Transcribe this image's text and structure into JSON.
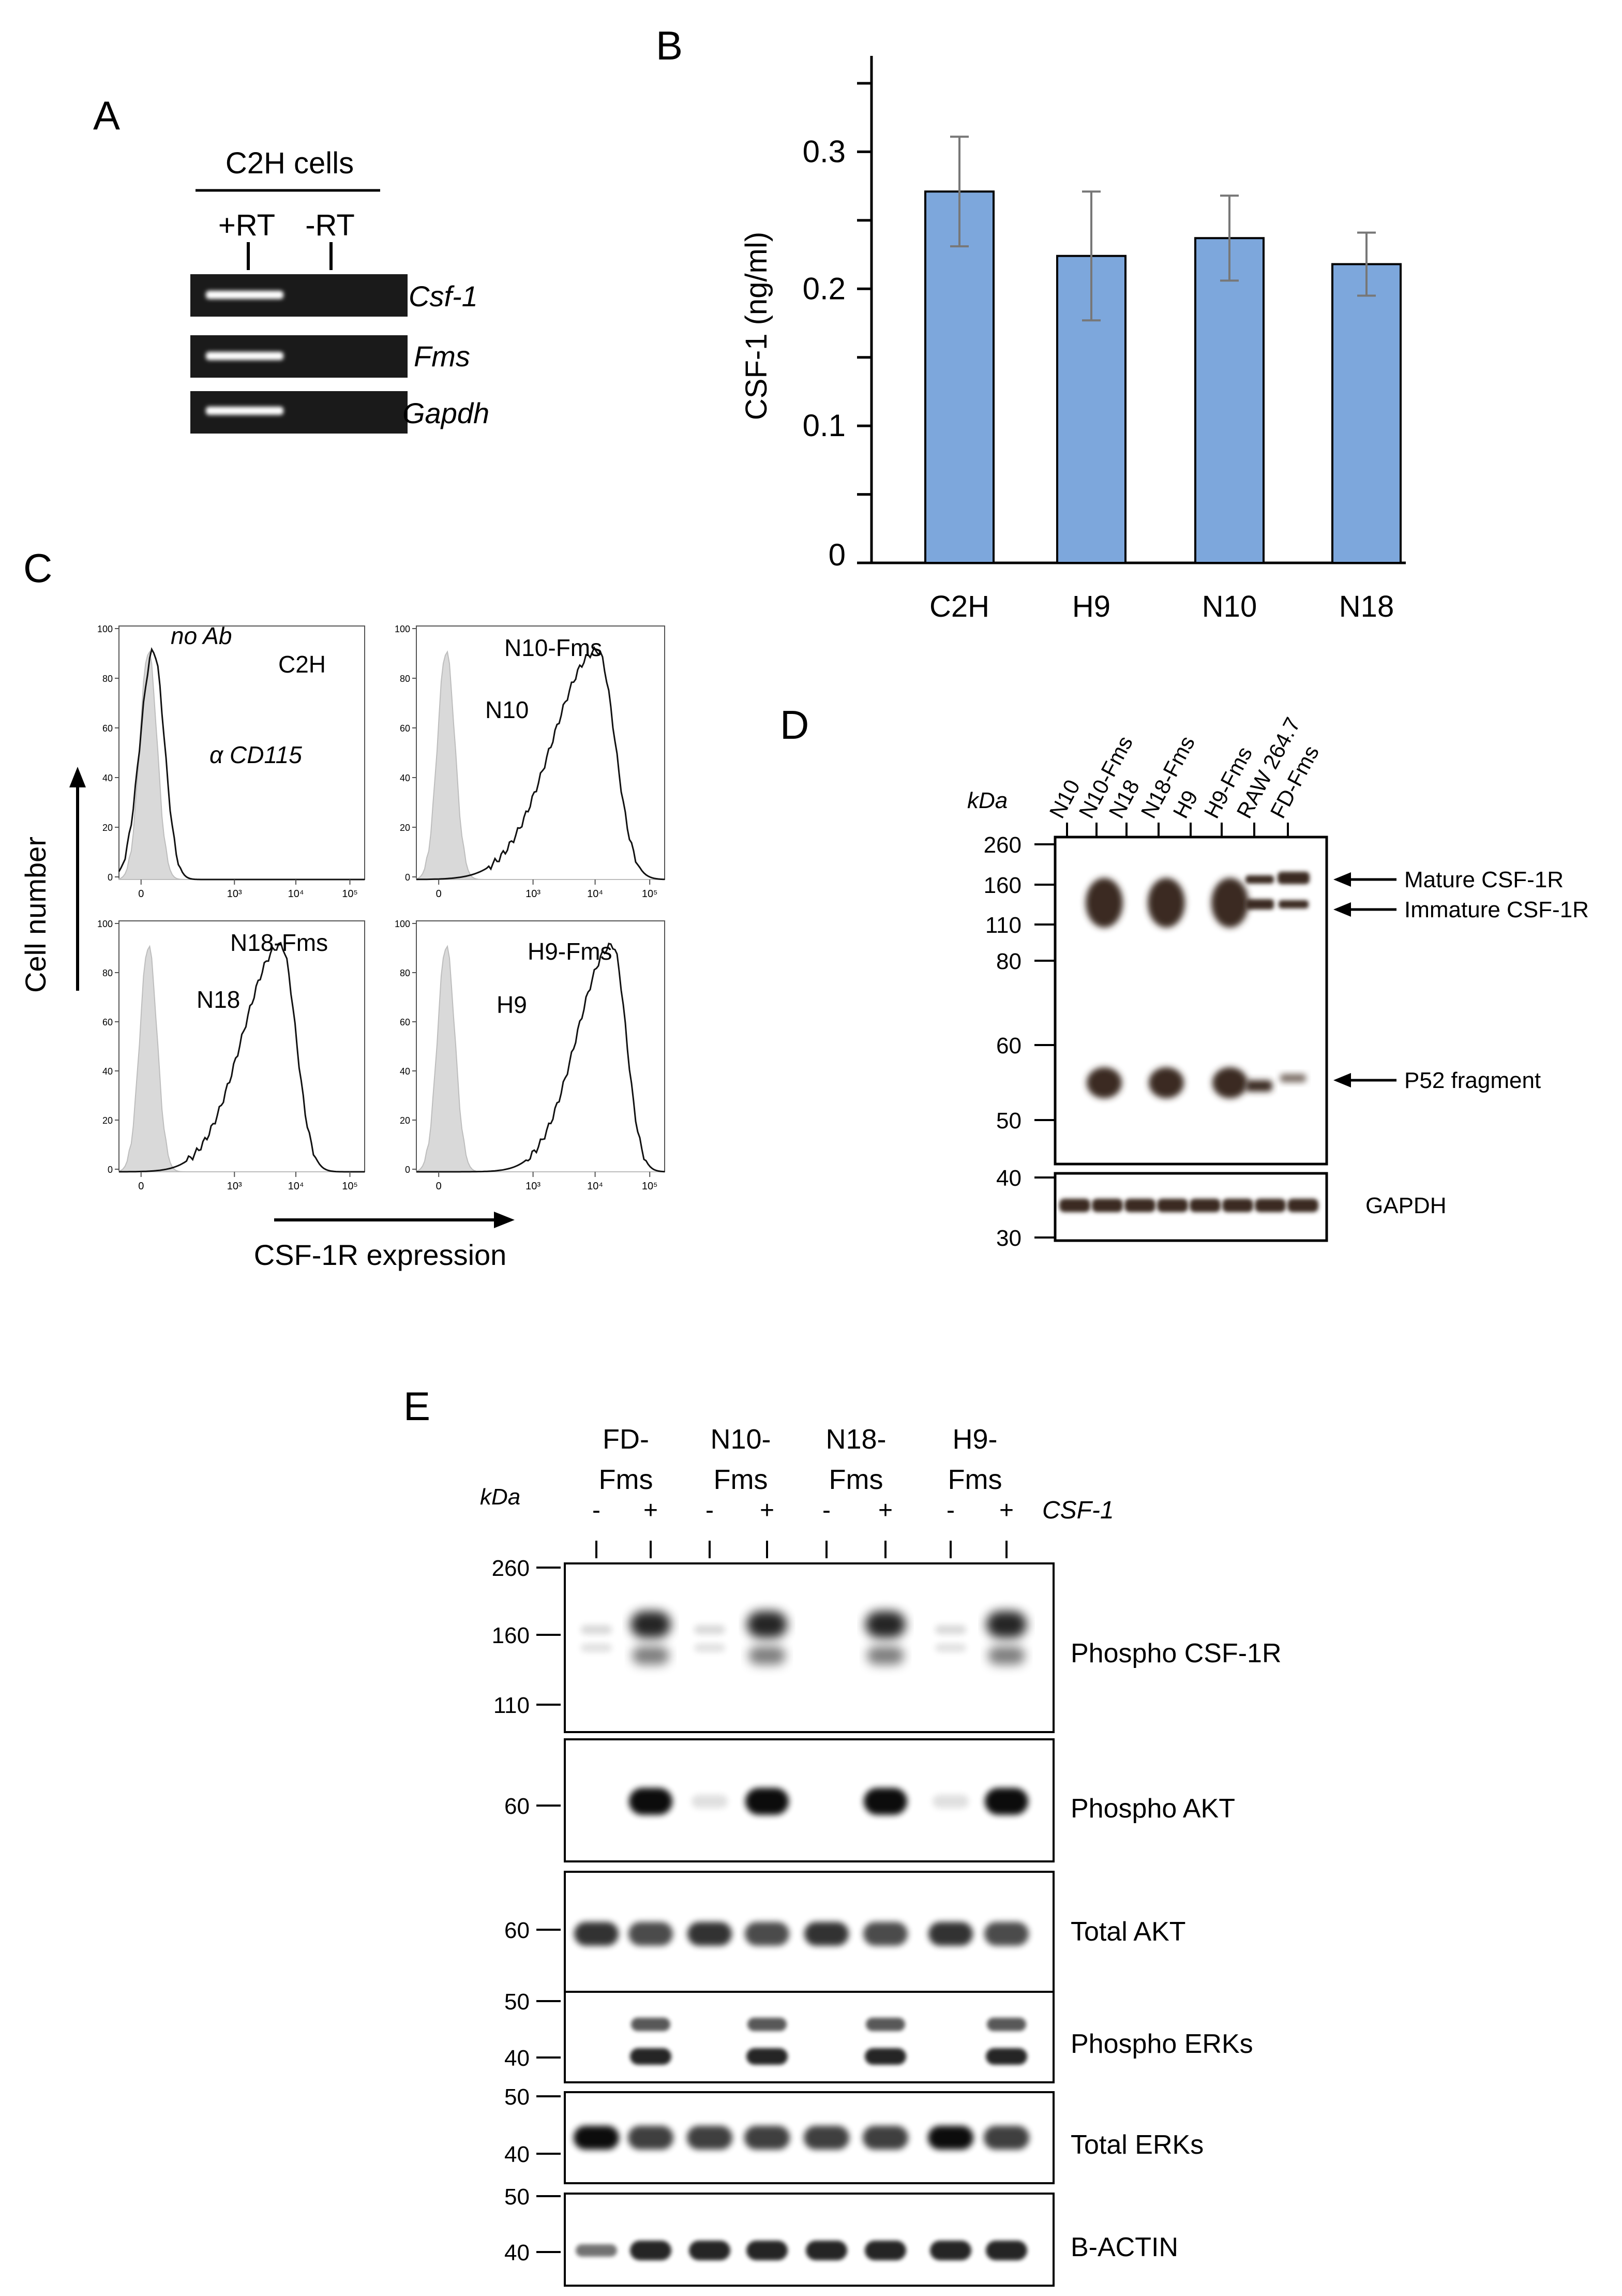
{
  "panels": {
    "A": "A",
    "B": "B",
    "C": "C",
    "D": "D",
    "E": "E"
  },
  "panel_a": {
    "title": "C2H cells",
    "lanes": [
      "+RT",
      "-RT"
    ],
    "genes": [
      "Csf-1",
      "Fms",
      "Gapdh"
    ]
  },
  "chart_data": {
    "type": "bar",
    "categories": [
      "C2H",
      "H9",
      "N10",
      "N18"
    ],
    "values": [
      0.271,
      0.224,
      0.237,
      0.218
    ],
    "errors": [
      0.04,
      0.047,
      0.031,
      0.023
    ],
    "ylabel": "CSF-1 (ng/ml)",
    "yticks": [
      "0",
      "0.1",
      "0.2",
      "0.3"
    ],
    "ylim": [
      0,
      0.37
    ],
    "bar_color": "#7da7dc",
    "grid": false
  },
  "panel_c": {
    "ylabel": "Cell number",
    "xlabel": "CSF-1R expression",
    "yticks": [
      "100",
      "80",
      "60",
      "40",
      "20",
      "0"
    ],
    "xticks": [
      "0",
      "10³",
      "10⁴",
      "10⁵"
    ],
    "plots": [
      {
        "top_label": "C2H",
        "mid_label": "no Ab",
        "ab_label": "α CD115"
      },
      {
        "top_label": "N10-Fms",
        "mid_label": "N10"
      },
      {
        "top_label": "N18-Fms",
        "mid_label": "N18"
      },
      {
        "top_label": "H9-Fms",
        "mid_label": "H9"
      }
    ]
  },
  "panel_d": {
    "kda": "kDa",
    "lanes": [
      "N10",
      "N10-Fms",
      "N18",
      "N18-Fms",
      "H9",
      "H9-Fms",
      "RAW 264.7",
      "FD-Fms"
    ],
    "markers": [
      "260",
      "160",
      "110",
      "80",
      "60",
      "50"
    ],
    "gapdh_markers": [
      "40",
      "30"
    ],
    "annotations": [
      "Mature CSF-1R",
      "Immature CSF-1R",
      "P52 fragment"
    ],
    "loading_label": "GAPDH"
  },
  "panel_e": {
    "kda": "kDa",
    "groups": [
      {
        "line1": "FD-",
        "line2": "Fms"
      },
      {
        "line1": "N10-",
        "line2": "Fms"
      },
      {
        "line1": "N18-",
        "line2": "Fms"
      },
      {
        "line1": "H9-",
        "line2": "Fms"
      }
    ],
    "treatment_label": "CSF-1",
    "signs": [
      "-",
      "+",
      "-",
      "+",
      "-",
      "+",
      "-",
      "+"
    ],
    "blots": [
      {
        "label": "Phospho CSF-1R",
        "markers": [
          "260",
          "160",
          "110"
        ]
      },
      {
        "label": "Phospho AKT",
        "markers": [
          "60"
        ]
      },
      {
        "label": "Total AKT",
        "markers": [
          "60"
        ]
      },
      {
        "label": "Phospho ERKs",
        "markers": [
          "50",
          "40"
        ]
      },
      {
        "label": "Total ERKs",
        "markers": [
          "50",
          "40"
        ]
      },
      {
        "label": "Β-ACTIN",
        "markers": [
          "50",
          "40"
        ]
      }
    ]
  }
}
